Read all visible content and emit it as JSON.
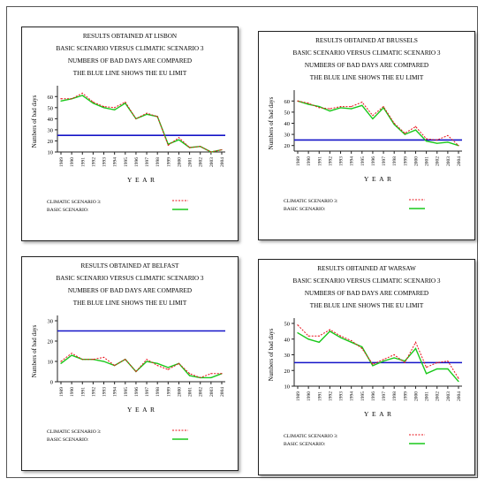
{
  "common": {
    "line2": "BASIC SCENARIO VERSUS CLIMATIC SCENARIO 3",
    "line3": "NUMBERS OF BAD DAYS ARE COMPARED",
    "line4": "THE BLUE LINE SHOWS THE EU LIMIT",
    "ylabel": "Numbers of bad days",
    "xlabel": "Y E A R",
    "legend_climatic": "CLIMATIC SCENARIO 3:",
    "legend_basic": "BASIC SCENARIO:"
  },
  "colors": {
    "climatic": "#e8141c",
    "basic": "#19c81a",
    "eu_limit": "#1414c8",
    "axis": "#222222"
  },
  "chart_data": [
    {
      "type": "line",
      "title": "RESULTS OBTAINED AT LISBON",
      "x": [
        "1989",
        "1990",
        "1991",
        "1992",
        "1993",
        "1994",
        "1995",
        "1996",
        "1997",
        "1998",
        "1999",
        "2000",
        "2001",
        "2002",
        "2003",
        "2004"
      ],
      "ylim": [
        10,
        65
      ],
      "yticks": [
        "10",
        "20",
        "30",
        "40",
        "50",
        "60"
      ],
      "eu_limit": 25,
      "series": [
        {
          "name": "CLIMATIC SCENARIO 3:",
          "values": [
            58,
            58,
            63,
            55,
            51,
            50,
            55,
            40,
            45,
            42,
            16,
            23,
            14,
            15,
            10,
            12
          ]
        },
        {
          "name": "BASIC SCENARIO:",
          "values": [
            56,
            58,
            61,
            54,
            50,
            48,
            54,
            40,
            44,
            42,
            17,
            21,
            14,
            15,
            10,
            12
          ]
        }
      ]
    },
    {
      "type": "line",
      "title": "RESULTS OBTAINED AT BRUSSELS",
      "x": [
        "1989",
        "1990",
        "1991",
        "1992",
        "1993",
        "1994",
        "1995",
        "1996",
        "1997",
        "1998",
        "1999",
        "2000",
        "2001",
        "2002",
        "2003",
        "2004"
      ],
      "ylim": [
        15,
        65
      ],
      "yticks": [
        "20",
        "30",
        "40",
        "50",
        "60"
      ],
      "eu_limit": 25,
      "series": [
        {
          "name": "CLIMATIC SCENARIO 3:",
          "values": [
            60,
            58,
            54,
            53,
            55,
            55,
            59,
            47,
            55,
            40,
            31,
            37,
            26,
            25,
            29,
            20
          ]
        },
        {
          "name": "BASIC SCENARIO:",
          "values": [
            60,
            57,
            55,
            51,
            54,
            53,
            56,
            44,
            54,
            39,
            30,
            34,
            24,
            22,
            23,
            20
          ]
        }
      ]
    },
    {
      "type": "line",
      "title": "RESULTS OBTAINED AT BELFAST",
      "x": [
        "1989",
        "1990",
        "1991",
        "1992",
        "1993",
        "1994",
        "1995",
        "1996",
        "1997",
        "1998",
        "1999",
        "2000",
        "2001",
        "2002",
        "2003",
        "2004"
      ],
      "ylim": [
        0,
        30
      ],
      "yticks": [
        "0",
        "10",
        "20",
        "30"
      ],
      "eu_limit": 25,
      "series": [
        {
          "name": "CLIMATIC SCENARIO 3:",
          "values": [
            10,
            14,
            11,
            11,
            12,
            8,
            11,
            5,
            11,
            8,
            6,
            9,
            4,
            2,
            4,
            4
          ]
        },
        {
          "name": "BASIC SCENARIO:",
          "values": [
            9,
            13,
            11,
            11,
            10,
            8,
            11,
            5,
            10,
            9,
            7,
            9,
            3,
            2,
            2,
            4
          ]
        }
      ]
    },
    {
      "type": "line",
      "title": "RESULTS OBTAINED AT WARSAW",
      "x": [
        "1989",
        "1990",
        "1991",
        "1992",
        "1993",
        "1994",
        "1995",
        "1996",
        "1997",
        "1998",
        "1999",
        "2000",
        "2001",
        "2002",
        "2003",
        "2004"
      ],
      "ylim": [
        10,
        50
      ],
      "yticks": [
        "10",
        "20",
        "30",
        "40",
        "50"
      ],
      "eu_limit": 25,
      "series": [
        {
          "name": "CLIMATIC SCENARIO 3:",
          "values": [
            49,
            42,
            42,
            46,
            42,
            39,
            34,
            24,
            27,
            30,
            25,
            38,
            22,
            25,
            26,
            15
          ]
        },
        {
          "name": "BASIC SCENARIO:",
          "values": [
            44,
            40,
            38,
            45,
            41,
            38,
            35,
            23,
            26,
            28,
            26,
            34,
            18,
            21,
            21,
            13
          ]
        }
      ]
    }
  ]
}
